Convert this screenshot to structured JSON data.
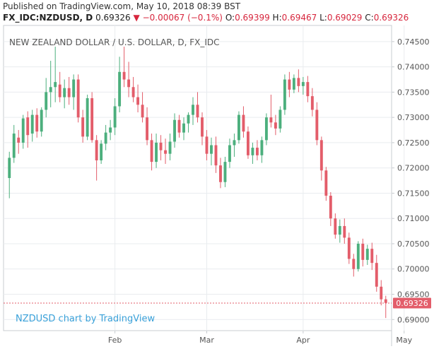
{
  "header": {
    "published_line": "Published on TradingView.com, May 10, 2018 08:39 BST",
    "symbol": "FX_IDC:NZDUSD, D",
    "last_price": "0.69326",
    "direction_glyph": "▼",
    "change": "−0.00067 (−0.1%)",
    "ohlc": [
      {
        "label": "O:",
        "value": "0.69399"
      },
      {
        "label": "H:",
        "value": "0.69467"
      },
      {
        "label": "L:",
        "value": "0.69029"
      },
      {
        "label": "C:",
        "value": "0.69326"
      }
    ]
  },
  "colors": {
    "up": "#4caf7d",
    "down": "#e35d6a",
    "grid": "#e9ecef",
    "axis_text": "#555555",
    "title_text": "#555555",
    "watermark": "#3aa1d9",
    "last_price_bg": "#e35d6a"
  },
  "chart_data": {
    "type": "candlestick",
    "title": "NEW ZEALAND DOLLAR / U.S. DOLLAR, D, FX_IDC",
    "watermark": "NZDUSD chart by TradingView",
    "price_axis": {
      "ticks": [
        "0.74500",
        "0.74000",
        "0.73500",
        "0.73000",
        "0.72500",
        "0.72000",
        "0.71500",
        "0.71000",
        "0.70500",
        "0.70000",
        "0.69500",
        "0.69000"
      ],
      "range": [
        0.6878,
        0.7482
      ]
    },
    "time_axis": {
      "labels": [
        {
          "label": "Feb",
          "index": 23
        },
        {
          "label": "Mar",
          "index": 43
        },
        {
          "label": "Apr",
          "index": 64
        },
        {
          "label": "May",
          "index": 86
        }
      ]
    },
    "last_price_label": "0.69326",
    "last_price": 0.69326,
    "candles": [
      {
        "o": 0.718,
        "h": 0.7232,
        "l": 0.714,
        "c": 0.722
      },
      {
        "o": 0.722,
        "h": 0.7285,
        "l": 0.721,
        "c": 0.7268
      },
      {
        "o": 0.726,
        "h": 0.7275,
        "l": 0.7228,
        "c": 0.725
      },
      {
        "o": 0.725,
        "h": 0.7305,
        "l": 0.7238,
        "c": 0.7298
      },
      {
        "o": 0.73,
        "h": 0.7312,
        "l": 0.724,
        "c": 0.7265
      },
      {
        "o": 0.7268,
        "h": 0.7315,
        "l": 0.7252,
        "c": 0.7305
      },
      {
        "o": 0.7305,
        "h": 0.7318,
        "l": 0.726,
        "c": 0.7272
      },
      {
        "o": 0.7272,
        "h": 0.732,
        "l": 0.7262,
        "c": 0.7315
      },
      {
        "o": 0.7315,
        "h": 0.7378,
        "l": 0.73,
        "c": 0.735
      },
      {
        "o": 0.735,
        "h": 0.7412,
        "l": 0.732,
        "c": 0.736
      },
      {
        "o": 0.736,
        "h": 0.744,
        "l": 0.733,
        "c": 0.737
      },
      {
        "o": 0.7365,
        "h": 0.739,
        "l": 0.733,
        "c": 0.734
      },
      {
        "o": 0.734,
        "h": 0.7375,
        "l": 0.7318,
        "c": 0.7358
      },
      {
        "o": 0.7358,
        "h": 0.738,
        "l": 0.7325,
        "c": 0.734
      },
      {
        "o": 0.734,
        "h": 0.7385,
        "l": 0.7315,
        "c": 0.7375
      },
      {
        "o": 0.7375,
        "h": 0.7385,
        "l": 0.729,
        "c": 0.73
      },
      {
        "o": 0.73,
        "h": 0.7315,
        "l": 0.725,
        "c": 0.7262
      },
      {
        "o": 0.7262,
        "h": 0.7345,
        "l": 0.7255,
        "c": 0.7338
      },
      {
        "o": 0.7338,
        "h": 0.735,
        "l": 0.725,
        "c": 0.7255
      },
      {
        "o": 0.7255,
        "h": 0.7265,
        "l": 0.7175,
        "c": 0.7215
      },
      {
        "o": 0.7215,
        "h": 0.7255,
        "l": 0.7208,
        "c": 0.7248
      },
      {
        "o": 0.7248,
        "h": 0.7285,
        "l": 0.7235,
        "c": 0.727
      },
      {
        "o": 0.727,
        "h": 0.7295,
        "l": 0.7255,
        "c": 0.728
      },
      {
        "o": 0.728,
        "h": 0.7338,
        "l": 0.7265,
        "c": 0.7322
      },
      {
        "o": 0.7322,
        "h": 0.742,
        "l": 0.731,
        "c": 0.739
      },
      {
        "o": 0.739,
        "h": 0.744,
        "l": 0.736,
        "c": 0.7375
      },
      {
        "o": 0.7375,
        "h": 0.741,
        "l": 0.734,
        "c": 0.736
      },
      {
        "o": 0.736,
        "h": 0.738,
        "l": 0.733,
        "c": 0.734
      },
      {
        "o": 0.734,
        "h": 0.7365,
        "l": 0.731,
        "c": 0.7325
      },
      {
        "o": 0.7325,
        "h": 0.735,
        "l": 0.729,
        "c": 0.73
      },
      {
        "o": 0.73,
        "h": 0.732,
        "l": 0.7245,
        "c": 0.7255
      },
      {
        "o": 0.7255,
        "h": 0.7268,
        "l": 0.7195,
        "c": 0.7212
      },
      {
        "o": 0.7212,
        "h": 0.7268,
        "l": 0.72,
        "c": 0.725
      },
      {
        "o": 0.725,
        "h": 0.7265,
        "l": 0.7215,
        "c": 0.7235
      },
      {
        "o": 0.7235,
        "h": 0.7258,
        "l": 0.7208,
        "c": 0.7228
      },
      {
        "o": 0.7228,
        "h": 0.7268,
        "l": 0.7215,
        "c": 0.7252
      },
      {
        "o": 0.7252,
        "h": 0.7308,
        "l": 0.724,
        "c": 0.7295
      },
      {
        "o": 0.7295,
        "h": 0.7305,
        "l": 0.726,
        "c": 0.727
      },
      {
        "o": 0.727,
        "h": 0.73,
        "l": 0.7255,
        "c": 0.7288
      },
      {
        "o": 0.7288,
        "h": 0.731,
        "l": 0.727,
        "c": 0.7305
      },
      {
        "o": 0.7305,
        "h": 0.734,
        "l": 0.7285,
        "c": 0.7325
      },
      {
        "o": 0.7325,
        "h": 0.735,
        "l": 0.729,
        "c": 0.73
      },
      {
        "o": 0.73,
        "h": 0.731,
        "l": 0.7245,
        "c": 0.7262
      },
      {
        "o": 0.7262,
        "h": 0.7275,
        "l": 0.7215,
        "c": 0.7228
      },
      {
        "o": 0.7228,
        "h": 0.726,
        "l": 0.7205,
        "c": 0.7245
      },
      {
        "o": 0.7245,
        "h": 0.7262,
        "l": 0.719,
        "c": 0.7205
      },
      {
        "o": 0.7205,
        "h": 0.722,
        "l": 0.716,
        "c": 0.7172
      },
      {
        "o": 0.7172,
        "h": 0.7222,
        "l": 0.7162,
        "c": 0.7212
      },
      {
        "o": 0.7212,
        "h": 0.7258,
        "l": 0.72,
        "c": 0.7245
      },
      {
        "o": 0.7245,
        "h": 0.7268,
        "l": 0.7222,
        "c": 0.7255
      },
      {
        "o": 0.7255,
        "h": 0.7312,
        "l": 0.7248,
        "c": 0.7305
      },
      {
        "o": 0.7305,
        "h": 0.7322,
        "l": 0.726,
        "c": 0.7272
      },
      {
        "o": 0.7272,
        "h": 0.7282,
        "l": 0.7218,
        "c": 0.7225
      },
      {
        "o": 0.7225,
        "h": 0.725,
        "l": 0.7208,
        "c": 0.724
      },
      {
        "o": 0.724,
        "h": 0.7255,
        "l": 0.7215,
        "c": 0.7225
      },
      {
        "o": 0.7225,
        "h": 0.7262,
        "l": 0.721,
        "c": 0.7255
      },
      {
        "o": 0.7255,
        "h": 0.7308,
        "l": 0.7245,
        "c": 0.73
      },
      {
        "o": 0.73,
        "h": 0.7345,
        "l": 0.728,
        "c": 0.729
      },
      {
        "o": 0.729,
        "h": 0.7305,
        "l": 0.7265,
        "c": 0.7278
      },
      {
        "o": 0.7278,
        "h": 0.7322,
        "l": 0.727,
        "c": 0.7315
      },
      {
        "o": 0.7315,
        "h": 0.7385,
        "l": 0.7305,
        "c": 0.7375
      },
      {
        "o": 0.7375,
        "h": 0.739,
        "l": 0.734,
        "c": 0.7355
      },
      {
        "o": 0.7355,
        "h": 0.7385,
        "l": 0.7348,
        "c": 0.7378
      },
      {
        "o": 0.7378,
        "h": 0.7395,
        "l": 0.735,
        "c": 0.7362
      },
      {
        "o": 0.7362,
        "h": 0.738,
        "l": 0.7345,
        "c": 0.737
      },
      {
        "o": 0.737,
        "h": 0.7382,
        "l": 0.733,
        "c": 0.7342
      },
      {
        "o": 0.7342,
        "h": 0.7358,
        "l": 0.7302,
        "c": 0.7315
      },
      {
        "o": 0.7315,
        "h": 0.733,
        "l": 0.7245,
        "c": 0.7255
      },
      {
        "o": 0.7255,
        "h": 0.7262,
        "l": 0.7175,
        "c": 0.7195
      },
      {
        "o": 0.7195,
        "h": 0.7202,
        "l": 0.7135,
        "c": 0.7145
      },
      {
        "o": 0.7145,
        "h": 0.7152,
        "l": 0.7085,
        "c": 0.71
      },
      {
        "o": 0.71,
        "h": 0.711,
        "l": 0.706,
        "c": 0.7068
      },
      {
        "o": 0.7068,
        "h": 0.7098,
        "l": 0.7052,
        "c": 0.7085
      },
      {
        "o": 0.7085,
        "h": 0.71,
        "l": 0.705,
        "c": 0.7062
      },
      {
        "o": 0.7062,
        "h": 0.7072,
        "l": 0.701,
        "c": 0.702
      },
      {
        "o": 0.702,
        "h": 0.703,
        "l": 0.6985,
        "c": 0.7
      },
      {
        "o": 0.7,
        "h": 0.7055,
        "l": 0.6995,
        "c": 0.705
      },
      {
        "o": 0.705,
        "h": 0.706,
        "l": 0.7005,
        "c": 0.7018
      },
      {
        "o": 0.7018,
        "h": 0.7048,
        "l": 0.7008,
        "c": 0.704
      },
      {
        "o": 0.704,
        "h": 0.7052,
        "l": 0.6998,
        "c": 0.7012
      },
      {
        "o": 0.7012,
        "h": 0.7028,
        "l": 0.6955,
        "c": 0.6965
      },
      {
        "o": 0.6965,
        "h": 0.6978,
        "l": 0.6928,
        "c": 0.694
      },
      {
        "o": 0.694,
        "h": 0.6947,
        "l": 0.6903,
        "c": 0.6933
      }
    ]
  }
}
